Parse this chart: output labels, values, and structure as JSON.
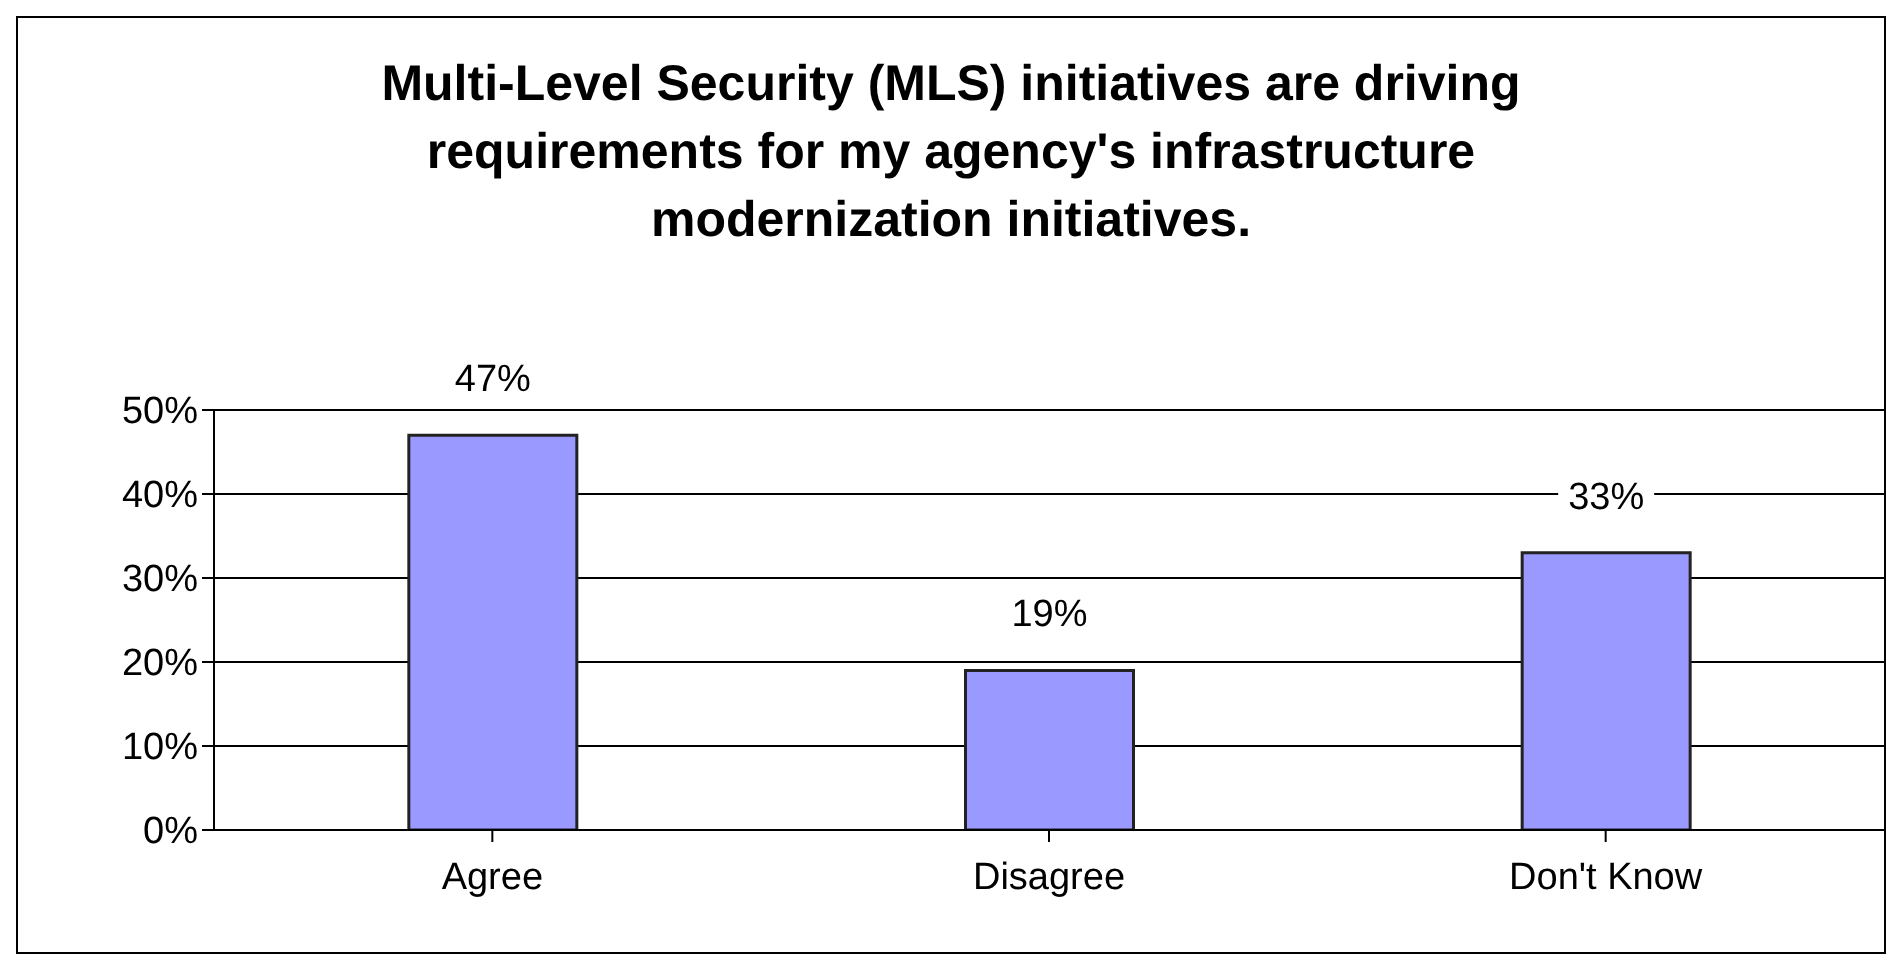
{
  "chart_data": {
    "type": "bar",
    "title": "Multi-Level Security (MLS) initiatives are driving requirements for my agency's infrastructure modernization initiatives.",
    "categories": [
      "Agree",
      "Disagree",
      "Don't Know"
    ],
    "values": [
      47,
      19,
      33
    ],
    "value_labels": [
      "47%",
      "19%",
      "33%"
    ],
    "color": "#9999ff",
    "ylim": [
      0,
      50
    ],
    "yticks": [
      {
        "value": 0,
        "label": "0%"
      },
      {
        "value": 10,
        "label": "10%"
      },
      {
        "value": 20,
        "label": "20%"
      },
      {
        "value": 30,
        "label": "30%"
      },
      {
        "value": 40,
        "label": "40%"
      },
      {
        "value": 50,
        "label": "50%"
      }
    ],
    "grid": "y"
  }
}
